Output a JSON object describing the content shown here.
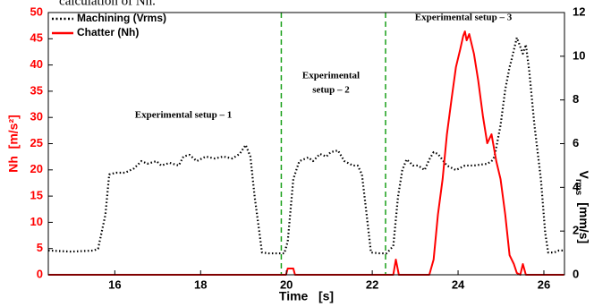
{
  "caption_fragment": "calculation of Nh.",
  "chart_data": {
    "type": "line",
    "xlabel": "Time   [s]",
    "ylabel": "Nh  [m/s²]",
    "y2label": "V",
    "y2label_sub": "rms",
    "y2label_unit": "[mm/s]",
    "xlim": [
      14.45,
      26.48
    ],
    "xticks": [
      16,
      18,
      20,
      22,
      24,
      26
    ],
    "ylim": [
      0,
      50
    ],
    "yticks": [
      0,
      5,
      10,
      15,
      20,
      25,
      30,
      35,
      40,
      45,
      50
    ],
    "y2lim": [
      0,
      12
    ],
    "y2ticks": [
      0,
      2,
      4,
      6,
      8,
      10,
      12
    ],
    "ycolor": "#ff0000",
    "grid": false,
    "legend": "upper left",
    "vlines": [
      19.88,
      22.31
    ],
    "vline_color": "#1aa01a",
    "annotations": [
      [
        "Experimental setup – 1"
      ],
      [
        "Experimental",
        "setup – 2"
      ],
      [
        "Experimental setup – 3"
      ]
    ],
    "series": [
      {
        "name": "Machining (Vrms)",
        "color": "#000000",
        "style": "dotted",
        "axis": "y2",
        "x": [
          14.45,
          14.99,
          15.51,
          15.61,
          15.78,
          15.87,
          16.03,
          16.24,
          16.45,
          16.62,
          16.76,
          16.97,
          17.08,
          17.28,
          17.49,
          17.6,
          17.74,
          17.91,
          18.12,
          18.33,
          18.53,
          18.74,
          18.91,
          19.05,
          19.16,
          19.26,
          19.37,
          19.43,
          19.58,
          19.78,
          19.95,
          20.03,
          20.16,
          20.3,
          20.51,
          20.62,
          20.78,
          20.93,
          21.03,
          21.2,
          21.35,
          21.55,
          21.66,
          21.76,
          21.87,
          21.97,
          22.18,
          22.33,
          22.49,
          22.6,
          22.7,
          22.8,
          22.95,
          23.07,
          23.22,
          23.33,
          23.43,
          23.53,
          23.74,
          23.95,
          24.16,
          24.37,
          24.68,
          24.78,
          24.85,
          24.99,
          25.1,
          25.2,
          25.24,
          25.37,
          25.51,
          25.58,
          25.66,
          25.78,
          25.93,
          26.03,
          26.1,
          26.24,
          26.35,
          26.47
        ],
        "values": [
          1.11,
          1.06,
          1.11,
          1.19,
          2.74,
          4.59,
          4.67,
          4.67,
          4.87,
          5.2,
          5.08,
          5.2,
          5.0,
          5.12,
          5.0,
          5.41,
          5.49,
          5.2,
          5.41,
          5.32,
          5.41,
          5.32,
          5.53,
          5.94,
          5.41,
          3.56,
          1.93,
          1.02,
          0.98,
          0.98,
          0.98,
          1.52,
          4.38,
          5.2,
          5.37,
          5.2,
          5.53,
          5.41,
          5.61,
          5.69,
          5.2,
          5.0,
          5.0,
          4.59,
          2.74,
          1.02,
          0.98,
          0.98,
          1.31,
          3.56,
          4.79,
          5.28,
          5.0,
          5.0,
          4.79,
          5.28,
          5.61,
          5.53,
          5.0,
          4.79,
          5.0,
          5.0,
          5.08,
          5.2,
          5.41,
          6.84,
          8.48,
          9.5,
          9.79,
          10.85,
          10.12,
          10.53,
          9.3,
          6.84,
          4.38,
          1.93,
          1.02,
          1.02,
          1.11,
          1.11
        ]
      },
      {
        "name": "Chatter (Nh)",
        "color": "#ff0000",
        "style": "solid",
        "x": [
          14.45,
          19.89,
          19.99,
          20.03,
          20.16,
          20.2,
          22.49,
          22.55,
          22.62,
          23.33,
          23.43,
          23.53,
          23.64,
          23.74,
          23.85,
          23.95,
          24.05,
          24.12,
          24.16,
          24.2,
          24.26,
          24.37,
          24.47,
          24.58,
          24.68,
          24.78,
          24.89,
          24.99,
          25.1,
          25.2,
          25.3,
          25.37,
          25.45,
          25.51,
          25.58,
          26.47
        ],
        "values": [
          0,
          0,
          0,
          1.19,
          1.19,
          0,
          0,
          2.9,
          0,
          0,
          2.9,
          11.43,
          18.25,
          26.78,
          33.61,
          39.58,
          42.99,
          45.55,
          46.4,
          44.7,
          45.89,
          42.14,
          37.02,
          30.2,
          25.08,
          26.78,
          21.67,
          18.25,
          11.43,
          3.75,
          2.05,
          0.34,
          0,
          2.05,
          0,
          0
        ]
      }
    ]
  }
}
